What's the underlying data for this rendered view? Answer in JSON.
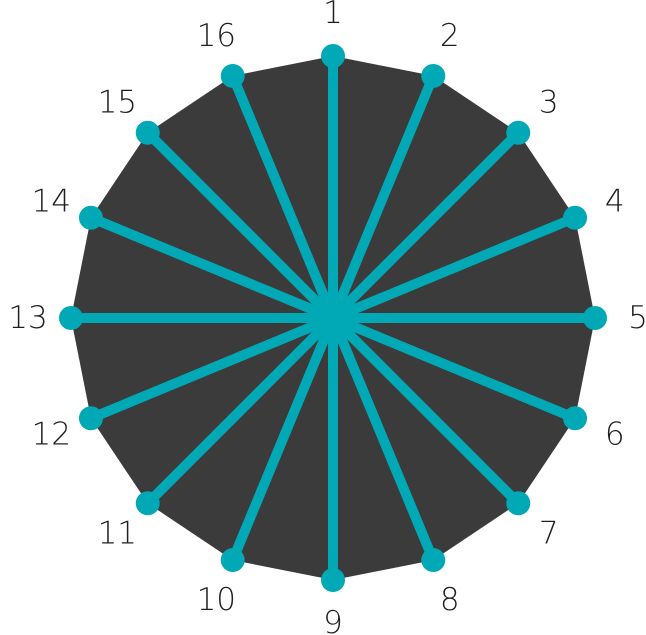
{
  "colors": {
    "background": "#ffffff",
    "disk": "#3b3b3b",
    "spoke": "#00a9b5",
    "label": "#1f1f1f"
  },
  "spokes": [
    {
      "label": "1"
    },
    {
      "label": "2"
    },
    {
      "label": "3"
    },
    {
      "label": "4"
    },
    {
      "label": "5"
    },
    {
      "label": "6"
    },
    {
      "label": "7"
    },
    {
      "label": "8"
    },
    {
      "label": "9"
    },
    {
      "label": "10"
    },
    {
      "label": "11"
    },
    {
      "label": "12"
    },
    {
      "label": "13"
    },
    {
      "label": "14"
    },
    {
      "label": "15"
    },
    {
      "label": "16"
    }
  ]
}
